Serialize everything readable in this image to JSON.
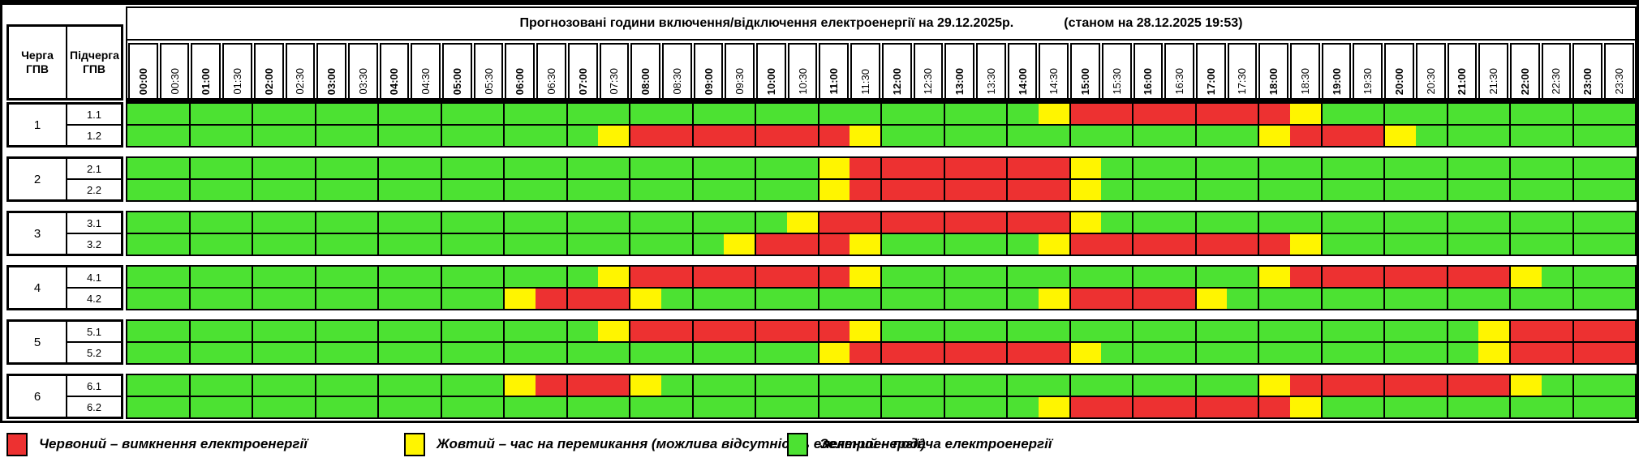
{
  "sheet": {
    "title": "Прогнозовані години включення/відключення електроенергії на 29.12.2025р.",
    "as_of": "(станом на 28.12.2025 19:53)",
    "left_header": {
      "queue": "Черга ГПВ",
      "subqueue": "Підчерга ГПВ"
    }
  },
  "colors": {
    "G": "#4CE232",
    "Y": "#FFF500",
    "R": "#ED3131",
    "border": "#000000"
  },
  "legend": [
    {
      "key": "R",
      "label": "Червоний – вимкнення електроенергії"
    },
    {
      "key": "Y",
      "label": "Жовтий – час на перемикання (можлива відсутність електроенергії)"
    },
    {
      "key": "G",
      "label": "Зелений – подача електроенергії"
    }
  ],
  "chart_data": {
    "type": "heatmap",
    "slot_minutes": 30,
    "value_meaning": {
      "G": "подача електроенергії",
      "Y": "час на перемикання",
      "R": "вимкнення електроенергії"
    },
    "x_labels": [
      "00:00",
      "00:30",
      "01:00",
      "01:30",
      "02:00",
      "02:30",
      "03:00",
      "03:30",
      "04:00",
      "04:30",
      "05:00",
      "05:30",
      "06:00",
      "06:30",
      "07:00",
      "07:30",
      "08:00",
      "08:30",
      "09:00",
      "09:30",
      "10:00",
      "10:30",
      "11:00",
      "11:30",
      "12:00",
      "12:30",
      "13:00",
      "13:30",
      "14:00",
      "14:30",
      "15:00",
      "15:30",
      "16:00",
      "16:30",
      "17:00",
      "17:30",
      "18:00",
      "18:30",
      "19:00",
      "19:30",
      "20:00",
      "20:30",
      "21:00",
      "21:30",
      "22:00",
      "22:30",
      "23:00",
      "23:30"
    ],
    "groups": [
      {
        "queue": "1",
        "rows": [
          {
            "label": "1.1",
            "slots": "GGGGGGGGGGGGGGGGGGGGGGGGGGGGGYRRRRRRRYGGGGGGGGGG"
          },
          {
            "label": "1.2",
            "slots": "GGGGGGGGGGGGGGGYRRRRRRRYGGGGGGGGGGGGYRRRYGGGGGGG"
          }
        ]
      },
      {
        "queue": "2",
        "rows": [
          {
            "label": "2.1",
            "slots": "GGGGGGGGGGGGGGGGGGGGGGYRRRRRRRYGGGGGGGGGGGGGGGGG"
          },
          {
            "label": "2.2",
            "slots": "GGGGGGGGGGGGGGGGGGGGGGYRRRRRRRYGGGGGGGGGGGGGGGGG"
          }
        ]
      },
      {
        "queue": "3",
        "rows": [
          {
            "label": "3.1",
            "slots": "GGGGGGGGGGGGGGGGGGGGGYRRRRRRRRYGGGGGGGGGGGGGGGGG"
          },
          {
            "label": "3.2",
            "slots": "GGGGGGGGGGGGGGGGGGGYRRRYGGGGGYRRRRRRRYGGGGGGGGGG"
          }
        ]
      },
      {
        "queue": "4",
        "rows": [
          {
            "label": "4.1",
            "slots": "GGGGGGGGGGGGGGGYRRRRRRRYGGGGGGGGGGGGYRRRRRRRYGGG"
          },
          {
            "label": "4.2",
            "slots": "GGGGGGGGGGGGYRRRYGGGGGGGGGGGGYRRRRYGGGGGGGGGGGGG"
          }
        ]
      },
      {
        "queue": "5",
        "rows": [
          {
            "label": "5.1",
            "slots": "GGGGGGGGGGGGGGGYRRRRRRRYGGGGGGGGGGGGGGGGGGGYRRRR"
          },
          {
            "label": "5.2",
            "slots": "GGGGGGGGGGGGGGGGGGGGGGYRRRRRRRYGGGGGGGGGGGGYRRRR"
          }
        ]
      },
      {
        "queue": "6",
        "rows": [
          {
            "label": "6.1",
            "slots": "GGGGGGGGGGGGYRRRYGGGGGGGGGGGGGGGGGGGYRRRRRRRYGGG"
          },
          {
            "label": "6.2",
            "slots": "GGGGGGGGGGGGGGGGGGGGGGGGGGGGGYRRRRRRRYGGGGGGGGGG"
          }
        ]
      }
    ]
  }
}
